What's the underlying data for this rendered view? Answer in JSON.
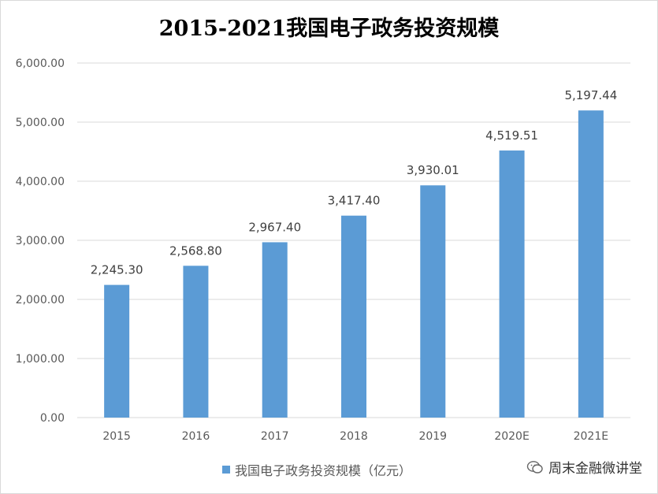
{
  "chart_data": {
    "type": "bar",
    "title": "2015-2021我国电子政务投资规模",
    "categories": [
      "2015",
      "2016",
      "2017",
      "2018",
      "2019",
      "2020E",
      "2021E"
    ],
    "series": [
      {
        "name": "我国电子政务投资规模（亿元）",
        "values": [
          2245.3,
          2568.8,
          2967.4,
          3417.4,
          3930.01,
          4519.51,
          5197.44
        ]
      }
    ],
    "data_labels": [
      "2,245.30",
      "2,568.80",
      "2,967.40",
      "3,417.40",
      "3,930.01",
      "4,519.51",
      "5,197.44"
    ],
    "y_ticks": [
      "0.00",
      "1,000.00",
      "2,000.00",
      "3,000.00",
      "4,000.00",
      "5,000.00",
      "6,000.00"
    ],
    "ylim": [
      0,
      6000
    ],
    "grid": true,
    "legend_position": "bottom",
    "bar_color": "#5b9bd5"
  },
  "watermark": {
    "text": "周末金融微讲堂",
    "icon": "wechat-icon"
  }
}
